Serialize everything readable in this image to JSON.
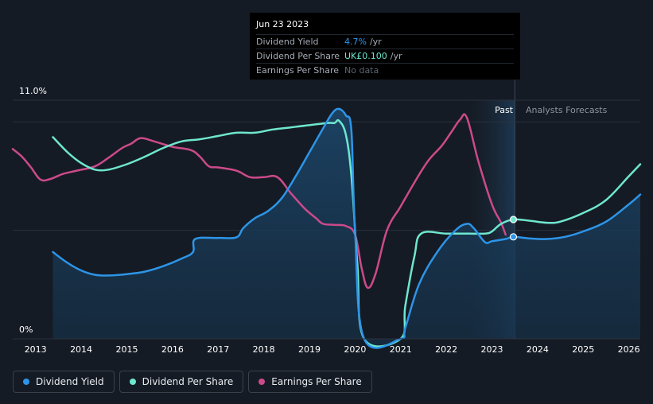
{
  "tooltip": {
    "date": "Jun 23 2023",
    "rows": [
      {
        "name": "Dividend Yield",
        "value": "4.7%",
        "unit": "/yr"
      },
      {
        "name": "Dividend Per Share",
        "value": "UK£0.100",
        "unit": "/yr"
      },
      {
        "name": "Earnings Per Share",
        "value": "No data",
        "unit": ""
      }
    ]
  },
  "legend": {
    "items": [
      "Dividend Yield",
      "Dividend Per Share",
      "Earnings Per Share"
    ]
  },
  "colors": {
    "dividend_yield": "#2d95e8",
    "dividend_per_share": "#6ee7cf",
    "earnings_per_share": "#cc4a8a",
    "background": "#151b24"
  },
  "chart_data": {
    "type": "line",
    "title": "",
    "xlabel": "",
    "ylabel": "",
    "y_axis_labels": [
      "11.0%",
      "0%"
    ],
    "ylim": [
      0,
      11
    ],
    "xlim": [
      2012.5,
      2026.25
    ],
    "x_ticks": [
      "2013",
      "2014",
      "2015",
      "2016",
      "2017",
      "2018",
      "2019",
      "2020",
      "2021",
      "2022",
      "2023",
      "2024",
      "2025",
      "2026"
    ],
    "region_labels": {
      "past": "Past",
      "forecast": "Analysts Forecasts"
    },
    "past_region": [
      2022.5,
      2023.5
    ],
    "series": [
      {
        "name": "Dividend Yield",
        "unit": "%",
        "points": [
          [
            2013.38,
            4.0
          ],
          [
            2013.7,
            3.5
          ],
          [
            2014.0,
            3.15
          ],
          [
            2014.3,
            2.95
          ],
          [
            2014.6,
            2.92
          ],
          [
            2015.0,
            2.98
          ],
          [
            2015.4,
            3.1
          ],
          [
            2015.8,
            3.35
          ],
          [
            2016.2,
            3.7
          ],
          [
            2016.45,
            4.0
          ],
          [
            2016.5,
            4.6
          ],
          [
            2017.0,
            4.65
          ],
          [
            2017.4,
            4.68
          ],
          [
            2017.55,
            5.1
          ],
          [
            2017.8,
            5.55
          ],
          [
            2018.1,
            5.9
          ],
          [
            2018.4,
            6.5
          ],
          [
            2018.7,
            7.5
          ],
          [
            2019.0,
            8.6
          ],
          [
            2019.3,
            9.7
          ],
          [
            2019.5,
            10.4
          ],
          [
            2019.65,
            10.6
          ],
          [
            2019.8,
            10.3
          ],
          [
            2019.92,
            9.6
          ],
          [
            2020.0,
            5.0
          ],
          [
            2020.2,
            0
          ],
          [
            2021.0,
            0
          ],
          [
            2021.1,
            0.5
          ],
          [
            2021.4,
            2.5
          ],
          [
            2021.8,
            4.0
          ],
          [
            2022.2,
            5.0
          ],
          [
            2022.45,
            5.3
          ],
          [
            2022.6,
            5.1
          ],
          [
            2022.85,
            4.45
          ],
          [
            2023.0,
            4.5
          ],
          [
            2023.3,
            4.6
          ],
          [
            2023.47,
            4.7
          ],
          [
            2023.8,
            4.63
          ],
          [
            2024.2,
            4.6
          ],
          [
            2024.6,
            4.7
          ],
          [
            2025.0,
            4.95
          ],
          [
            2025.5,
            5.4
          ],
          [
            2026.0,
            6.2
          ],
          [
            2026.25,
            6.65
          ]
        ]
      },
      {
        "name": "Dividend Per Share",
        "unit": "relative",
        "points": [
          [
            2013.38,
            9.3
          ],
          [
            2013.7,
            8.6
          ],
          [
            2014.0,
            8.1
          ],
          [
            2014.3,
            7.8
          ],
          [
            2014.6,
            7.8
          ],
          [
            2015.0,
            8.05
          ],
          [
            2015.4,
            8.4
          ],
          [
            2015.8,
            8.8
          ],
          [
            2016.2,
            9.1
          ],
          [
            2016.6,
            9.2
          ],
          [
            2017.0,
            9.35
          ],
          [
            2017.4,
            9.5
          ],
          [
            2017.8,
            9.5
          ],
          [
            2018.2,
            9.65
          ],
          [
            2018.6,
            9.75
          ],
          [
            2019.0,
            9.85
          ],
          [
            2019.4,
            9.95
          ],
          [
            2019.55,
            9.95
          ],
          [
            2019.65,
            10.05
          ],
          [
            2019.8,
            9.4
          ],
          [
            2019.92,
            7.5
          ],
          [
            2020.05,
            3.5
          ],
          [
            2020.2,
            0
          ],
          [
            2021.0,
            0
          ],
          [
            2021.1,
            1.5
          ],
          [
            2021.3,
            3.8
          ],
          [
            2021.45,
            4.85
          ],
          [
            2022.0,
            4.85
          ],
          [
            2022.5,
            4.85
          ],
          [
            2022.85,
            4.85
          ],
          [
            2023.0,
            4.95
          ],
          [
            2023.2,
            5.3
          ],
          [
            2023.47,
            5.5
          ],
          [
            2023.8,
            5.45
          ],
          [
            2024.2,
            5.35
          ],
          [
            2024.5,
            5.4
          ],
          [
            2025.0,
            5.8
          ],
          [
            2025.5,
            6.4
          ],
          [
            2026.0,
            7.5
          ],
          [
            2026.25,
            8.05
          ]
        ]
      },
      {
        "name": "Earnings Per Share",
        "unit": "relative",
        "points": [
          [
            2012.5,
            8.75
          ],
          [
            2012.7,
            8.4
          ],
          [
            2012.9,
            7.9
          ],
          [
            2013.1,
            7.35
          ],
          [
            2013.3,
            7.35
          ],
          [
            2013.6,
            7.6
          ],
          [
            2013.9,
            7.75
          ],
          [
            2014.3,
            7.95
          ],
          [
            2014.6,
            8.35
          ],
          [
            2014.9,
            8.8
          ],
          [
            2015.1,
            9.0
          ],
          [
            2015.3,
            9.25
          ],
          [
            2015.6,
            9.1
          ],
          [
            2016.0,
            8.85
          ],
          [
            2016.4,
            8.7
          ],
          [
            2016.6,
            8.4
          ],
          [
            2016.8,
            7.95
          ],
          [
            2017.0,
            7.9
          ],
          [
            2017.4,
            7.75
          ],
          [
            2017.7,
            7.45
          ],
          [
            2018.0,
            7.45
          ],
          [
            2018.3,
            7.45
          ],
          [
            2018.6,
            6.7
          ],
          [
            2018.9,
            6.0
          ],
          [
            2019.15,
            5.55
          ],
          [
            2019.3,
            5.3
          ],
          [
            2019.55,
            5.25
          ],
          [
            2019.8,
            5.2
          ],
          [
            2020.0,
            4.8
          ],
          [
            2020.15,
            3.2
          ],
          [
            2020.28,
            2.35
          ],
          [
            2020.45,
            3.0
          ],
          [
            2020.7,
            5.0
          ],
          [
            2021.0,
            6.1
          ],
          [
            2021.3,
            7.2
          ],
          [
            2021.6,
            8.2
          ],
          [
            2021.9,
            8.9
          ],
          [
            2022.1,
            9.5
          ],
          [
            2022.3,
            10.1
          ],
          [
            2022.45,
            10.2
          ],
          [
            2022.7,
            8.2
          ],
          [
            2023.0,
            6.2
          ],
          [
            2023.2,
            5.35
          ],
          [
            2023.3,
            4.8
          ]
        ]
      }
    ],
    "markers": [
      {
        "series": "Dividend Yield",
        "x": 2023.47,
        "y": 4.7
      },
      {
        "series": "Dividend Per Share",
        "x": 2023.47,
        "y": 5.5
      }
    ]
  }
}
